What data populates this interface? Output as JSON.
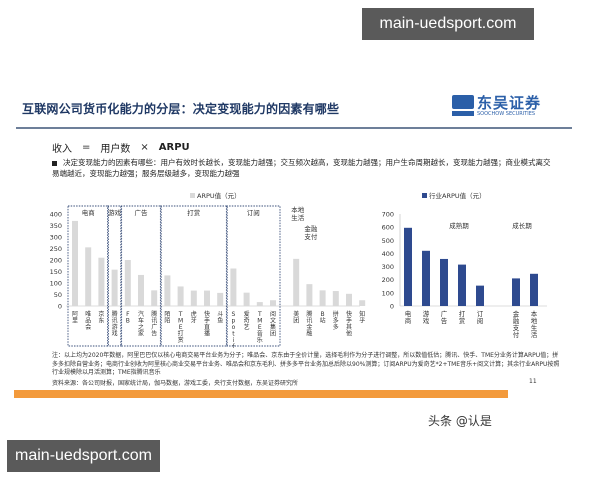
{
  "watermarks": {
    "top": "main-uedsport.com",
    "bottom": "main-uedsport.com"
  },
  "slide": {
    "title": "互联网公司货币化能力的分层：决定变现能力的因素有哪些",
    "logo": {
      "cn": "东吴证券",
      "en": "SOOCHOW SECURITIES"
    },
    "formula": {
      "left": "收入",
      "eq": "=",
      "users": "用户数",
      "times": "×",
      "arpu": "ARPU"
    },
    "bullet": "决定变现能力的因素有哪些：用户有效时长越长，变现能力越强；交互频次越高，变现能力越强；用户生命周期越长，变现能力越强；商业模式离交易端越近，变现能力越强；服务层级越多，变现能力越强",
    "notes": "注：以上均为2020年数据，阿里巴巴仅以核心电商交易平台业务为分子；唯品会、京东由于全价计量，选择毛利作为分子进行调整，所以数值低估；腾讯、快手、TME分业务计算ARPU值；拼多多扣除自营业务；电商行业创收为阿里核心商业交易平台业务、唯品会和京东毛利、拼多多平台业务加总后除以90%测算；订阅ARPU为爱奇艺*2+TME音乐+阅文计算；其余行业ARPU按照行业规模除以月活测算；TME指腾讯音乐",
    "source": "资料来源：各公司财报，国家统计局，伽马数据，游戏工委，央行支付数据，东吴证券研究所",
    "page_number": "11"
  },
  "attribution": "头条 @认是",
  "colors": {
    "company_bar": "#d9d9d9",
    "industry_bar": "#2e4a8f",
    "title": "#1f3864",
    "orange": "#f39a3c"
  },
  "chart_data": [
    {
      "type": "bar",
      "title": "",
      "legend": [
        "ARPU值（元）"
      ],
      "ylim": [
        0,
        400
      ],
      "yticks": [
        0,
        50,
        100,
        150,
        200,
        250,
        300,
        350,
        400
      ],
      "categories": [
        "阿里",
        "唯品会",
        "京东",
        "腾讯游戏",
        "FB",
        "汽车之家",
        "腾讯广告",
        "陌陌",
        "TME打赏",
        "虎牙",
        "快手直播",
        "斗鱼",
        "Spotify",
        "爱奇艺",
        "TME音乐",
        "阅文集团",
        "美团",
        "腾讯金融",
        "B站",
        "拼多多",
        "快手其他",
        "知乎"
      ],
      "values": [
        370,
        255,
        210,
        158,
        200,
        135,
        68,
        133,
        85,
        67,
        67,
        57,
        163,
        58,
        17,
        25,
        205,
        95,
        68,
        65,
        53,
        25
      ],
      "groups": [
        {
          "label": "电商",
          "start": 0,
          "end": 2
        },
        {
          "label": "游戏",
          "start": 3,
          "end": 3
        },
        {
          "label": "广告",
          "start": 4,
          "end": 6
        },
        {
          "label": "打赏",
          "start": 7,
          "end": 11
        },
        {
          "label": "订阅",
          "start": 12,
          "end": 15
        }
      ],
      "annotations": [
        "本地生活",
        "金融支付"
      ]
    },
    {
      "type": "bar",
      "title": "",
      "legend": [
        "行业ARPU值（元）"
      ],
      "ylim": [
        0,
        700
      ],
      "yticks": [
        0,
        100,
        200,
        300,
        400,
        500,
        600,
        700
      ],
      "categories": [
        "电商",
        "游戏",
        "广告",
        "打赏",
        "订阅",
        "金融支付",
        "本地生活"
      ],
      "values": [
        595,
        420,
        358,
        315,
        155,
        210,
        245
      ],
      "annotations": [
        "成熟期",
        "成长期"
      ]
    }
  ]
}
